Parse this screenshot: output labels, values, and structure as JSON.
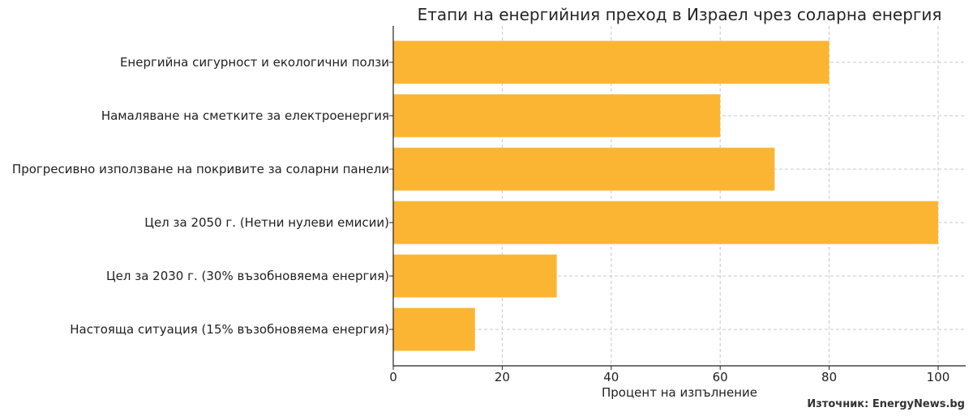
{
  "chart_data": {
    "type": "bar",
    "orientation": "horizontal",
    "title": "Етапи на енергийния преход в Израел чрез соларна енергия",
    "xlabel": "Процент на изпълнение",
    "ylabel": "",
    "categories": [
      "Енергийна сигурност и екологични ползи",
      "Намаляване на сметките за електроенергия",
      "Прогресивно използване на покривите за соларни панели",
      "Цел за 2050 г. (Нетни нулеви емисии)",
      "Цел за 2030 г. (30% възобновяема енергия)",
      "Настояща ситуация (15% възобновяема енергия)"
    ],
    "values": [
      80,
      60,
      70,
      100,
      30,
      15
    ],
    "xlim": [
      0,
      104
    ],
    "xticks": [
      0,
      20,
      40,
      60,
      80,
      100
    ],
    "grid": true,
    "bar_color": "#FBB533"
  },
  "source_note": "Източник: EnergyNews.bg"
}
